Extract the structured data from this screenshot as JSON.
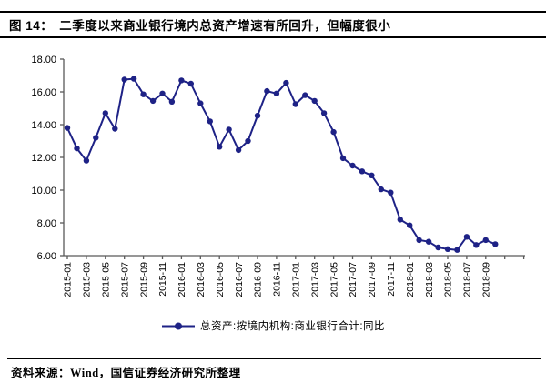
{
  "figure": {
    "title_prefix": "图 14：",
    "title": "二季度以来商业银行境内总资产增速有所回升，但幅度很小"
  },
  "footer": {
    "source_label": "资料来源：",
    "source_text": "Wind，国信证券经济研究所整理"
  },
  "colors": {
    "line": "#1E2286",
    "axis": "#595959",
    "text": "#000000",
    "rule": "#000000"
  },
  "chart_data": {
    "type": "line",
    "title": "",
    "series_name": "总资产:按境内机构:商业银行合计:同比",
    "legend_position": "bottom",
    "grid": false,
    "ylim": [
      6,
      18
    ],
    "ytick_step": 2,
    "xtick_label_every": 2,
    "x": [
      "2015-01",
      "2015-02",
      "2015-03",
      "2015-04",
      "2015-05",
      "2015-06",
      "2015-07",
      "2015-08",
      "2015-09",
      "2015-10",
      "2015-11",
      "2015-12",
      "2016-01",
      "2016-02",
      "2016-03",
      "2016-04",
      "2016-05",
      "2016-06",
      "2016-07",
      "2016-08",
      "2016-09",
      "2016-10",
      "2016-11",
      "2016-12",
      "2017-01",
      "2017-02",
      "2017-03",
      "2017-04",
      "2017-05",
      "2017-06",
      "2017-07",
      "2017-08",
      "2017-09",
      "2017-10",
      "2017-11",
      "2017-12",
      "2018-01",
      "2018-02",
      "2018-03",
      "2018-04",
      "2018-05",
      "2018-06",
      "2018-07",
      "2018-08",
      "2018-09",
      "2018-10"
    ],
    "values": [
      13.8,
      12.55,
      11.8,
      13.2,
      14.7,
      13.75,
      16.75,
      16.8,
      15.85,
      15.45,
      15.9,
      15.4,
      16.7,
      16.5,
      15.3,
      14.2,
      12.65,
      13.7,
      12.45,
      13.0,
      14.55,
      16.05,
      15.9,
      16.55,
      15.25,
      15.8,
      15.45,
      14.7,
      13.55,
      11.95,
      11.5,
      11.15,
      10.9,
      10.05,
      9.85,
      8.2,
      7.85,
      6.95,
      6.85,
      6.5,
      6.4,
      6.35,
      7.15,
      6.65,
      6.95,
      6.7
    ]
  }
}
